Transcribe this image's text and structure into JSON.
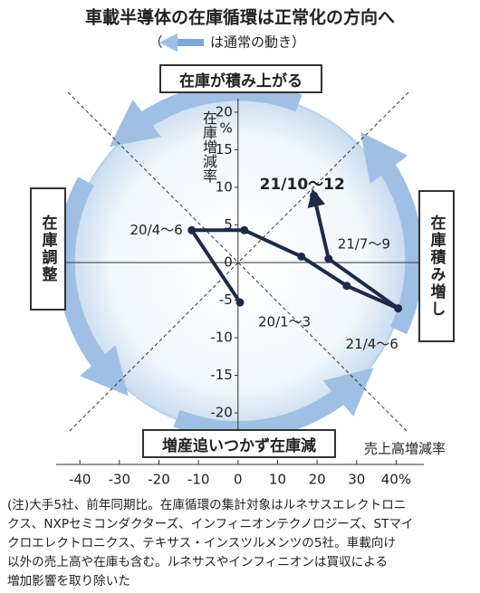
{
  "chart_data": {
    "type": "line",
    "title": "車載半導体の在庫循環は正常化の方向へ",
    "subtitle_open": "（",
    "subtitle": "は通常の動き）",
    "quadrant_top": "在庫が積み上がる",
    "quadrant_right": "在庫積み増し",
    "quadrant_bottom": "増産追いつかず在庫減",
    "quadrant_left": "在庫調整",
    "y_label": "在庫増減率",
    "y_unit": "%",
    "x_label": "売上高増減率",
    "x": [
      0.5,
      -11.7,
      1.6,
      16,
      27.5,
      40.5,
      22.9,
      19.2
    ],
    "point_labels": [
      "20/1～3",
      "20/4～6",
      null,
      null,
      null,
      "21/4～6",
      "21/7～9",
      "21/10～12"
    ],
    "series": [
      {
        "color": "#1f2a4a",
        "values": [
          -5.3,
          4.3,
          4.3,
          0.8,
          -3.1,
          -6.1,
          0.5,
          8.9
        ]
      }
    ],
    "xlim": [
      -46,
      47
    ],
    "ylim": [
      -23,
      23
    ],
    "xticks": [
      -40,
      -30,
      -20,
      -10,
      0,
      10,
      20,
      30,
      {
        "value": 40,
        "label": "40%"
      }
    ],
    "yticks": [
      -20,
      -15,
      -10,
      -5,
      0,
      5,
      10,
      15,
      20
    ],
    "note": [
      "(注)大手5社、前年同期比。在庫循環の集計対象はルネサスエレクトロニ",
      "クス、NXPセミコンダクターズ、インフィニオンテクノロジーズ、STマイ",
      "クロエレクトロニクス、テキサス・インスツルメンツの5社。車載向け",
      "以外の売上高や在庫も含む。ルネサスやインフィニオンは買収による",
      "増加影響を取り除いた"
    ]
  }
}
